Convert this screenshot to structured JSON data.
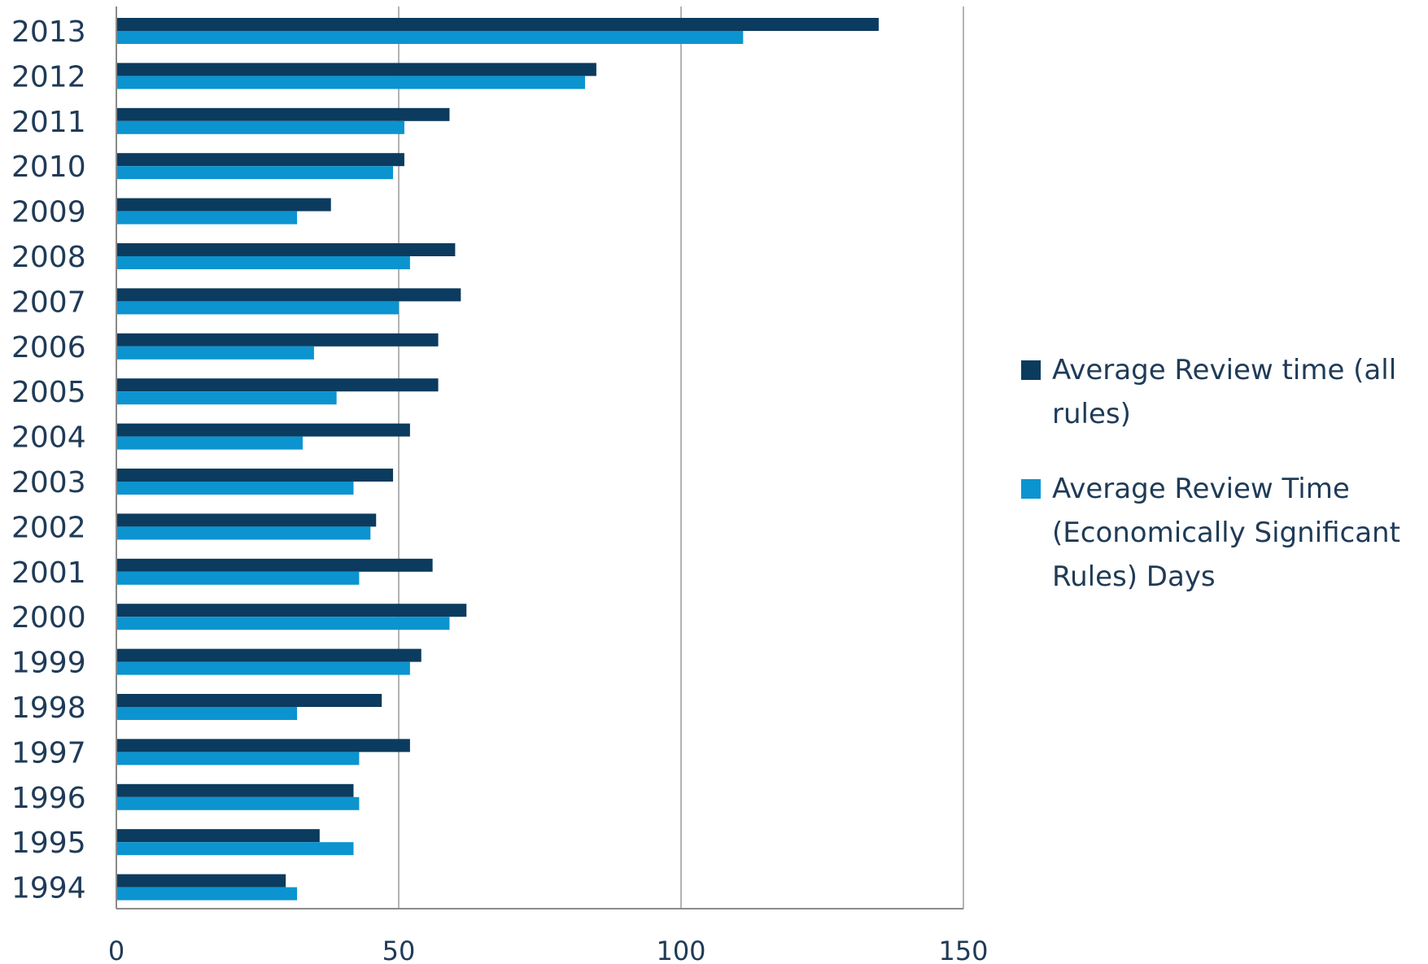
{
  "chart_data": {
    "type": "bar",
    "orientation": "horizontal",
    "categories": [
      "2013",
      "2012",
      "2011",
      "2010",
      "2009",
      "2008",
      "2007",
      "2006",
      "2005",
      "2004",
      "2003",
      "2002",
      "2001",
      "2000",
      "1999",
      "1998",
      "1997",
      "1996",
      "1995",
      "1994"
    ],
    "series": [
      {
        "name": "Average Review time (all rules)",
        "color": "#0b3b5e",
        "values": [
          135,
          85,
          59,
          51,
          38,
          60,
          61,
          57,
          57,
          52,
          49,
          46,
          56,
          62,
          54,
          47,
          52,
          42,
          36,
          30
        ]
      },
      {
        "name": "Average Review Time (Economically Significant Rules) Days",
        "color": "#0b94cf",
        "values": [
          111,
          83,
          51,
          49,
          32,
          52,
          50,
          35,
          39,
          33,
          42,
          45,
          43,
          59,
          52,
          32,
          43,
          43,
          42,
          32
        ]
      }
    ],
    "xlim": [
      0,
      150
    ],
    "xticks": [
      "0",
      "50",
      "100",
      "150"
    ],
    "grid": true,
    "legend_position": "right",
    "title": "",
    "xlabel": "",
    "ylabel": ""
  }
}
